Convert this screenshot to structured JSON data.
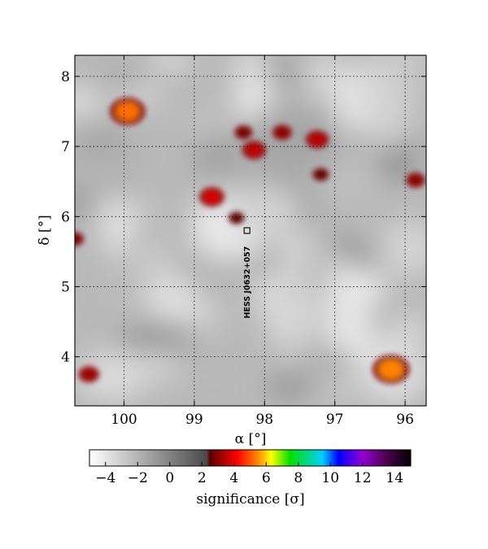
{
  "chart_data": {
    "type": "heatmap",
    "xlabel": "α [°]",
    "ylabel": "δ [°]",
    "xlim": [
      100.7,
      95.7
    ],
    "ylim": [
      3.3,
      8.3
    ],
    "x_ticks": [
      {
        "value": 100,
        "label": "100"
      },
      {
        "value": 99,
        "label": "99"
      },
      {
        "value": 98,
        "label": "98"
      },
      {
        "value": 97,
        "label": "97"
      },
      {
        "value": 96,
        "label": "96"
      }
    ],
    "y_ticks": [
      {
        "value": 4,
        "label": "4"
      },
      {
        "value": 5,
        "label": "5"
      },
      {
        "value": 6,
        "label": "6"
      },
      {
        "value": 7,
        "label": "7"
      },
      {
        "value": 8,
        "label": "8"
      }
    ],
    "grid": true,
    "source": {
      "label": "HESS J0632+057",
      "ra": 98.25,
      "dec": 5.8
    },
    "hotspots": [
      {
        "ra": 99.95,
        "dec": 7.5,
        "sigma": 5.2
      },
      {
        "ra": 96.2,
        "dec": 3.82,
        "sigma": 5.4
      },
      {
        "ra": 98.75,
        "dec": 6.28,
        "sigma": 3.8
      },
      {
        "ra": 98.15,
        "dec": 6.95,
        "sigma": 3.6
      },
      {
        "ra": 97.25,
        "dec": 7.1,
        "sigma": 3.5
      },
      {
        "ra": 97.75,
        "dec": 7.2,
        "sigma": 3.0
      },
      {
        "ra": 98.3,
        "dec": 7.2,
        "sigma": 2.8
      },
      {
        "ra": 100.5,
        "dec": 3.75,
        "sigma": 3.2
      },
      {
        "ra": 95.85,
        "dec": 6.52,
        "sigma": 3.0
      },
      {
        "ra": 100.7,
        "dec": 5.68,
        "sigma": 2.8
      },
      {
        "ra": 97.2,
        "dec": 6.6,
        "sigma": 2.6
      },
      {
        "ra": 98.4,
        "dec": 5.98,
        "sigma": 2.5
      }
    ],
    "colorbar": {
      "label": "significance [σ]",
      "range": [
        -5,
        15
      ],
      "ticks": [
        {
          "value": -4,
          "label": "−4"
        },
        {
          "value": -2,
          "label": "−2"
        },
        {
          "value": 0,
          "label": "0"
        },
        {
          "value": 2,
          "label": "2"
        },
        {
          "value": 4,
          "label": "4"
        },
        {
          "value": 6,
          "label": "6"
        },
        {
          "value": 8,
          "label": "8"
        },
        {
          "value": 10,
          "label": "10"
        },
        {
          "value": 12,
          "label": "12"
        },
        {
          "value": 14,
          "label": "14"
        }
      ],
      "stops": [
        {
          "value": -5,
          "color": "#ffffff"
        },
        {
          "value": 2.3,
          "color": "#4a4a4a"
        },
        {
          "value": 2.5,
          "color": "#5c0000"
        },
        {
          "value": 4.2,
          "color": "#ff0000"
        },
        {
          "value": 5.5,
          "color": "#ff8c00"
        },
        {
          "value": 6.3,
          "color": "#ffff00"
        },
        {
          "value": 7.5,
          "color": "#00e000"
        },
        {
          "value": 9.5,
          "color": "#00d0ff"
        },
        {
          "value": 10.5,
          "color": "#0000ff"
        },
        {
          "value": 12,
          "color": "#9400d3"
        },
        {
          "value": 13.5,
          "color": "#4b004b"
        },
        {
          "value": 15,
          "color": "#000000"
        }
      ]
    }
  }
}
